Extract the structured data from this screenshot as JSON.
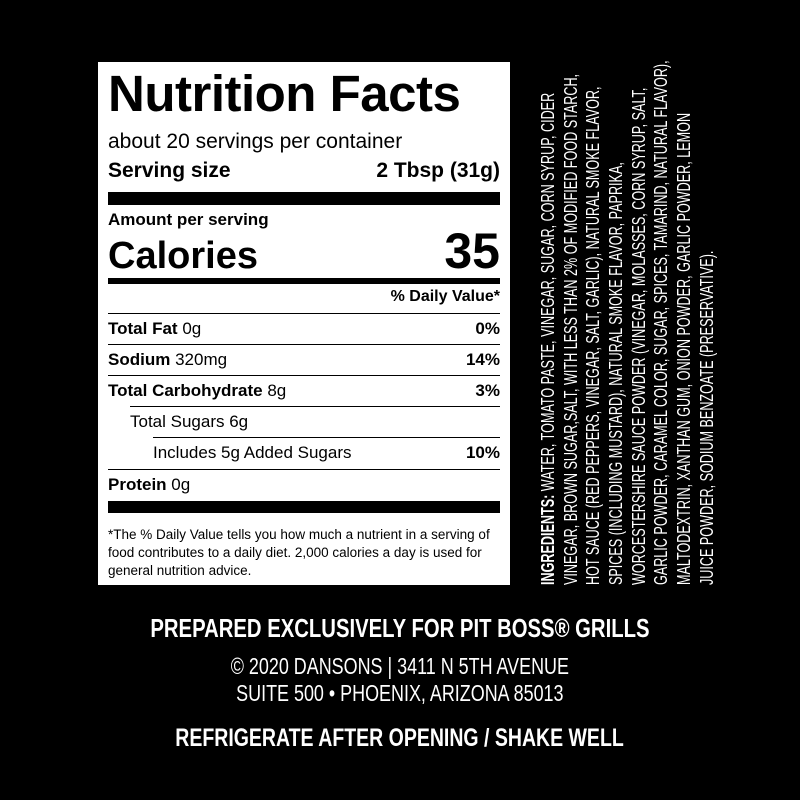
{
  "nutrition": {
    "title": "Nutrition Facts",
    "servings": "about 20 servings per container",
    "serving_size_label": "Serving size",
    "serving_size_value": "2 Tbsp (31g)",
    "amount_per_serving": "Amount per serving",
    "calories_label": "Calories",
    "calories_value": "35",
    "daily_value_header": "% Daily Value*",
    "rows": [
      {
        "label": "Total Fat",
        "amount": "0g",
        "dv": "0%"
      },
      {
        "label": "Sodium",
        "amount": "320mg",
        "dv": "14%"
      },
      {
        "label": "Total Carbohydrate",
        "amount": "8g",
        "dv": "3%"
      },
      {
        "label": "Total Sugars 6g",
        "amount": "",
        "dv": ""
      },
      {
        "label": "Includes 5g Added Sugars",
        "amount": "",
        "dv": "10%"
      },
      {
        "label": "Protein",
        "amount": "0g",
        "dv": ""
      }
    ],
    "footnote": "*The % Daily Value tells you how much a nutrient in a serving of food contributes to a daily diet. 2,000 calories a day is used for general nutrition advice."
  },
  "ingredients": {
    "label": "INGREDIENTS:",
    "lines": [
      " WATER, TOMATO PASTE, VINEGAR, SUGAR, CORN SYRUP, CIDER",
      "VINEGAR, BROWN SUGAR,SALT, WITH LESS THAN 2% OF MODIFIED FOOD STARCH,",
      "HOT SAUCE (RED PEPPERS, VINEGAR, SALT, GARLIC), NATURAL SMOKE FLAVOR,",
      "SPICES (INCLUDING MUSTARD), NATURAL SMOKE FLAVOR, PAPRIKA,",
      "WORCESTERSHIRE SAUCE POWDER (VINEGAR, MOLASSES, CORN SYRUP, SALT,",
      "GARLIC POWDER, CARAMEL COLOR, SUGAR, SPICES, TAMARIND, NATURAL FLAVOR),",
      "MALTODEXTRIN, XANTHAN GUM, ONION POWDER, GARLIC POWDER, LEMON",
      "JUICE POWDER, SODIUM BENZOATE (PRESERVATIVE)."
    ]
  },
  "footer": {
    "prepared": "PREPARED EXCLUSIVELY FOR PIT BOSS® GRILLS",
    "address_line1": "© 2020 DANSONS | 3411 N 5TH AVENUE",
    "address_line2": "SUITE 500 • PHOENIX, ARIZONA 85013",
    "storage": "REFRIGERATE AFTER OPENING / SHAKE WELL"
  }
}
